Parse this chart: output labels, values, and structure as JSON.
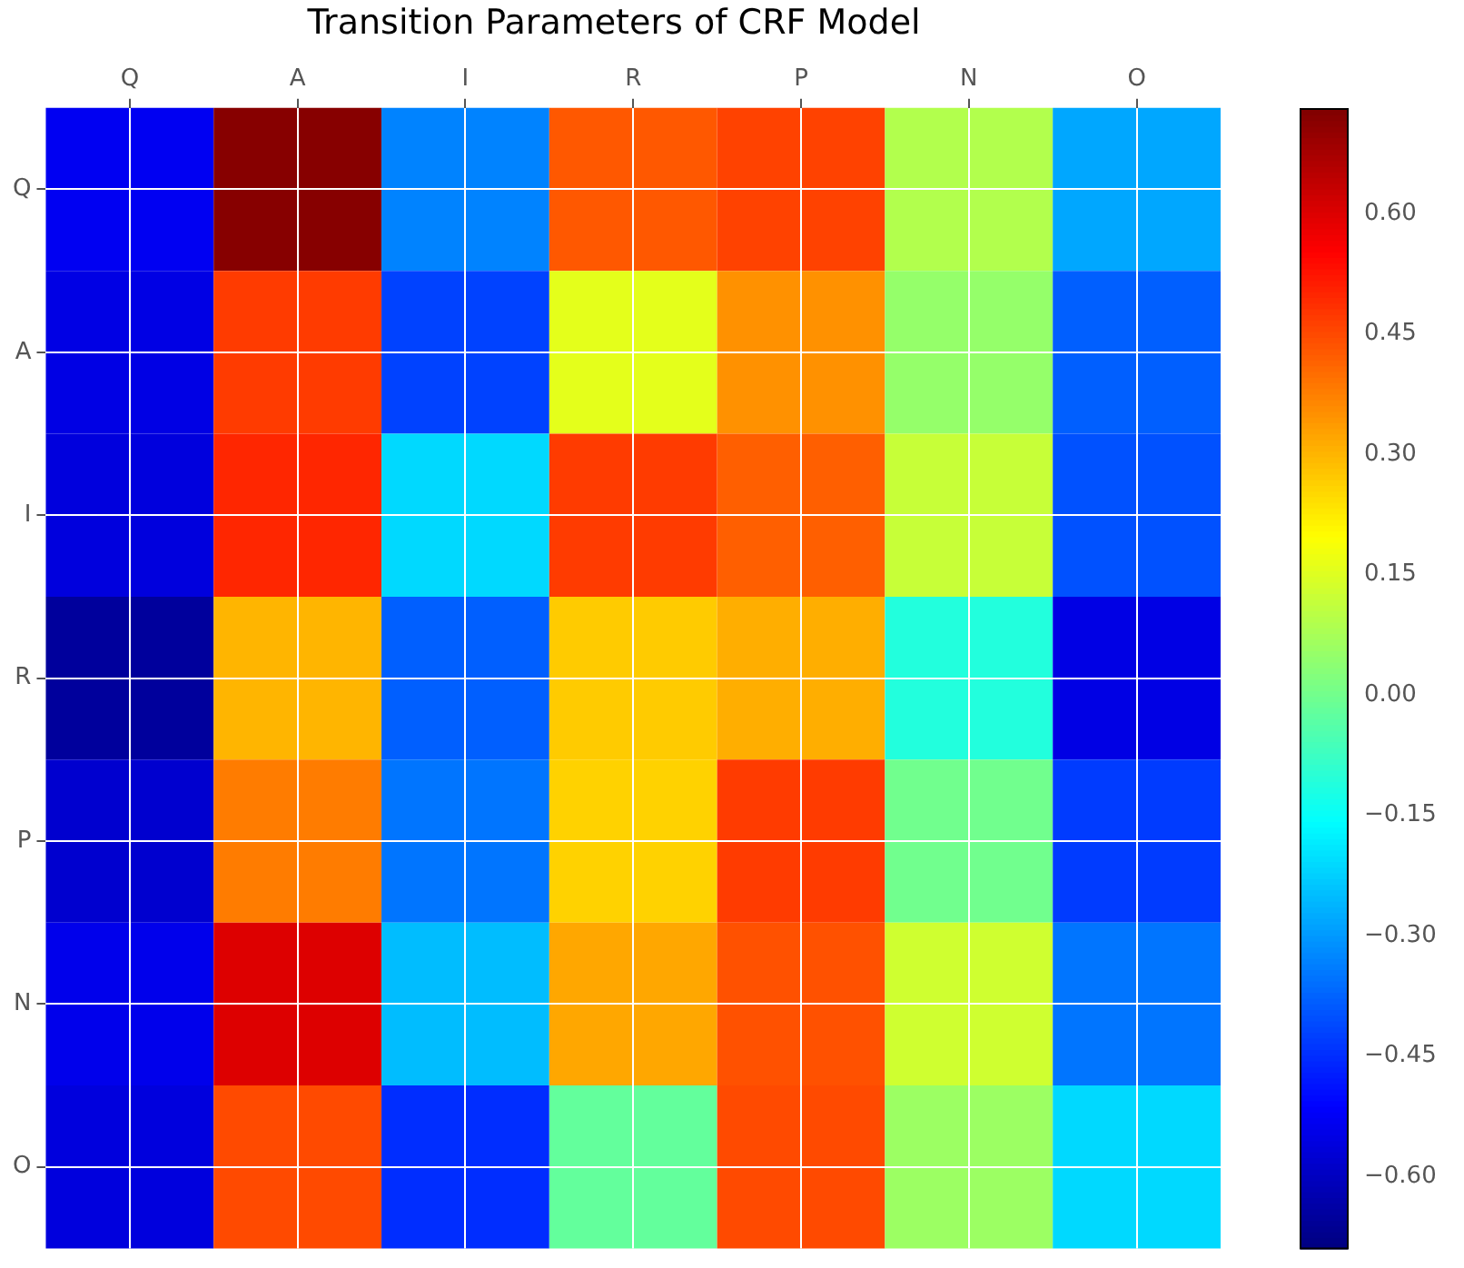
{
  "chart_data": {
    "type": "heatmap",
    "title": "Transition Parameters of CRF Model",
    "categories": [
      "Q",
      "A",
      "I",
      "R",
      "P",
      "N",
      "O"
    ],
    "y_categories": [
      "Q",
      "A",
      "I",
      "R",
      "P",
      "N",
      "O"
    ],
    "cells": [
      [
        -0.53,
        0.72,
        -0.33,
        0.43,
        0.46,
        0.09,
        -0.28
      ],
      [
        -0.55,
        0.47,
        -0.42,
        0.16,
        0.35,
        0.05,
        -0.38
      ],
      [
        -0.56,
        0.5,
        -0.21,
        0.47,
        0.42,
        0.12,
        -0.4
      ],
      [
        -0.65,
        0.3,
        -0.38,
        0.27,
        0.31,
        -0.11,
        -0.55
      ],
      [
        -0.58,
        0.38,
        -0.35,
        0.26,
        0.47,
        0,
        -0.43
      ],
      [
        -0.54,
        0.6,
        -0.25,
        0.32,
        0.44,
        0.13,
        -0.35
      ],
      [
        -0.56,
        0.45,
        -0.45,
        -0.02,
        0.45,
        0.06,
        -0.21
      ]
    ],
    "clim": [
      -0.69,
      0.73
    ],
    "cticks": [
      {
        "value": -0.6,
        "label": "−0.60"
      },
      {
        "value": -0.45,
        "label": "−0.45"
      },
      {
        "value": -0.3,
        "label": "−0.30"
      },
      {
        "value": -0.15,
        "label": "−0.15"
      },
      {
        "value": 0,
        "label": "0.00"
      },
      {
        "value": 0.15,
        "label": "0.15"
      },
      {
        "value": 0.3,
        "label": "0.30"
      },
      {
        "value": 0.45,
        "label": "0.45"
      },
      {
        "value": 0.6,
        "label": "0.60"
      }
    ],
    "grid": true
  }
}
